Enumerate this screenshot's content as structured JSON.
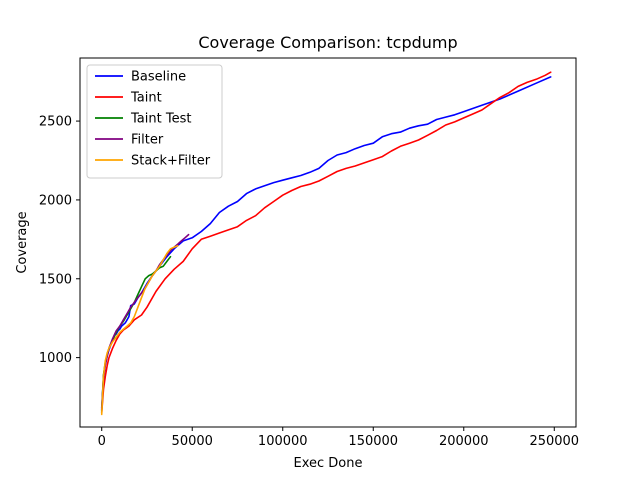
{
  "chart_data": {
    "type": "line",
    "title": "Coverage Comparison: tcpdump",
    "xlabel": "Exec Done",
    "ylabel": "Coverage",
    "xlim": [
      -12000,
      262000
    ],
    "ylim": [
      560,
      2900
    ],
    "xticks": [
      0,
      50000,
      100000,
      150000,
      200000,
      250000
    ],
    "yticks": [
      1000,
      1500,
      2000,
      2500
    ],
    "grid": false,
    "legend_position": "top-left",
    "series": [
      {
        "name": "Baseline",
        "color": "#0000ff",
        "x": [
          0,
          1000,
          2000,
          3000,
          4000,
          5000,
          6000,
          7000,
          8000,
          9000,
          10000,
          11000,
          12000,
          13000,
          14000,
          15000,
          16000,
          18000,
          20000,
          22000,
          25000,
          28000,
          32000,
          36000,
          40000,
          45000,
          50000,
          55000,
          60000,
          65000,
          70000,
          75000,
          80000,
          85000,
          90000,
          95000,
          100000,
          105000,
          110000,
          115000,
          120000,
          125000,
          130000,
          135000,
          140000,
          145000,
          150000,
          155000,
          160000,
          165000,
          170000,
          175000,
          180000,
          185000,
          190000,
          195000,
          200000,
          210000,
          220000,
          230000,
          240000,
          248000
        ],
        "y": [
          680,
          880,
          960,
          1010,
          1050,
          1080,
          1110,
          1140,
          1150,
          1170,
          1180,
          1200,
          1210,
          1220,
          1240,
          1260,
          1330,
          1340,
          1380,
          1410,
          1470,
          1520,
          1580,
          1640,
          1690,
          1740,
          1760,
          1800,
          1850,
          1920,
          1960,
          1990,
          2040,
          2070,
          2090,
          2110,
          2125,
          2140,
          2155,
          2175,
          2200,
          2250,
          2285,
          2300,
          2325,
          2345,
          2360,
          2400,
          2420,
          2430,
          2455,
          2470,
          2480,
          2510,
          2525,
          2540,
          2560,
          2600,
          2640,
          2690,
          2740,
          2780
        ]
      },
      {
        "name": "Taint",
        "color": "#ff0000",
        "x": [
          0,
          1000,
          2000,
          3000,
          4000,
          6000,
          8000,
          10000,
          12000,
          15000,
          18000,
          22000,
          25000,
          30000,
          35000,
          40000,
          45000,
          50000,
          55000,
          60000,
          65000,
          70000,
          75000,
          80000,
          85000,
          90000,
          95000,
          100000,
          105000,
          110000,
          115000,
          120000,
          125000,
          130000,
          135000,
          140000,
          145000,
          150000,
          155000,
          160000,
          165000,
          170000,
          175000,
          180000,
          185000,
          190000,
          195000,
          200000,
          205000,
          210000,
          215000,
          220000,
          225000,
          230000,
          235000,
          240000,
          245000,
          248000
        ],
        "y": [
          650,
          800,
          880,
          950,
          1000,
          1060,
          1110,
          1150,
          1175,
          1200,
          1240,
          1270,
          1320,
          1420,
          1500,
          1560,
          1610,
          1690,
          1750,
          1770,
          1790,
          1810,
          1830,
          1870,
          1900,
          1950,
          1990,
          2030,
          2060,
          2085,
          2100,
          2120,
          2150,
          2180,
          2200,
          2215,
          2235,
          2255,
          2275,
          2310,
          2340,
          2360,
          2380,
          2410,
          2440,
          2475,
          2495,
          2520,
          2545,
          2570,
          2610,
          2650,
          2680,
          2720,
          2745,
          2765,
          2790,
          2810
        ]
      },
      {
        "name": "Taint Test",
        "color": "#008000",
        "x": [
          0,
          1000,
          2000,
          3000,
          4000,
          6000,
          8000,
          10000,
          12000,
          14000,
          16000,
          18000,
          20000,
          22000,
          24000,
          26000,
          28000,
          30000,
          32000,
          34000,
          36000,
          38000
        ],
        "y": [
          660,
          890,
          970,
          1020,
          1060,
          1110,
          1160,
          1200,
          1230,
          1270,
          1310,
          1350,
          1400,
          1450,
          1500,
          1520,
          1530,
          1550,
          1570,
          1580,
          1610,
          1640
        ]
      },
      {
        "name": "Filter",
        "color": "#800080",
        "x": [
          0,
          1000,
          2000,
          3000,
          4000,
          6000,
          8000,
          10000,
          12000,
          14000,
          16000,
          18000,
          20000,
          22000,
          24000,
          26000,
          28000,
          30000,
          32000,
          34000,
          36000,
          38000,
          40000,
          42000,
          44000,
          46000,
          48000
        ],
        "y": [
          670,
          860,
          950,
          1010,
          1060,
          1120,
          1170,
          1200,
          1240,
          1280,
          1320,
          1350,
          1380,
          1410,
          1440,
          1480,
          1520,
          1550,
          1590,
          1620,
          1650,
          1680,
          1700,
          1720,
          1740,
          1760,
          1780
        ]
      },
      {
        "name": "Stack+Filter",
        "color": "#ffa500",
        "x": [
          0,
          1000,
          2000,
          3000,
          4000,
          6000,
          8000,
          10000,
          12000,
          14000,
          16000,
          18000,
          20000,
          22000,
          24000,
          26000,
          28000,
          30000,
          32000,
          34000,
          36000,
          38000,
          40000,
          42000
        ],
        "y": [
          640,
          880,
          980,
          1030,
          1060,
          1100,
          1130,
          1160,
          1180,
          1200,
          1220,
          1260,
          1320,
          1380,
          1440,
          1480,
          1520,
          1550,
          1580,
          1620,
          1660,
          1690,
          1700,
          1710
        ]
      }
    ]
  }
}
